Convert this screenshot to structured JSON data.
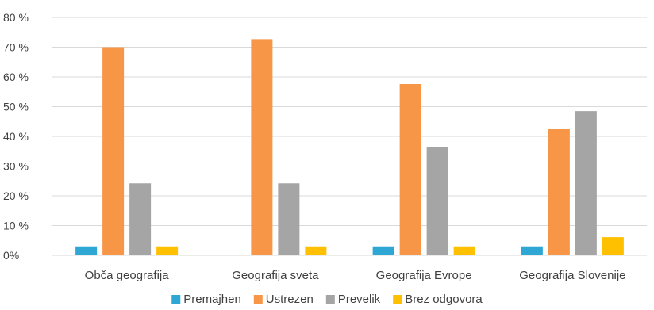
{
  "chart_data": {
    "type": "bar",
    "title": "",
    "xlabel": "",
    "ylabel": "",
    "y_format": "percent",
    "ylim": [
      0,
      80
    ],
    "yticks": [
      0,
      10,
      20,
      30,
      40,
      50,
      60,
      70,
      80
    ],
    "ytick_labels": [
      "0%",
      "10 %",
      "20 %",
      "30 %",
      "40 %",
      "50 %",
      "60 %",
      "70 %",
      "80 %"
    ],
    "grid": true,
    "legend_position": "bottom",
    "categories": [
      "Obča geografija",
      "Geografija sveta",
      "Geografija Evrope",
      "Geografija Slovenije"
    ],
    "series": [
      {
        "name": "Premajhen",
        "color": "#2ea7d4",
        "values": [
          3,
          0,
          3,
          3
        ]
      },
      {
        "name": "Ustrezen",
        "color": "#f79646",
        "values": [
          70,
          72.7,
          57.6,
          42.4
        ]
      },
      {
        "name": "Prevelik",
        "color": "#a5a5a5",
        "values": [
          24.2,
          24.2,
          36.4,
          48.5
        ]
      },
      {
        "name": "Brez odgovora",
        "color": "#ffc000",
        "values": [
          3,
          3,
          3,
          6.1
        ]
      }
    ]
  }
}
